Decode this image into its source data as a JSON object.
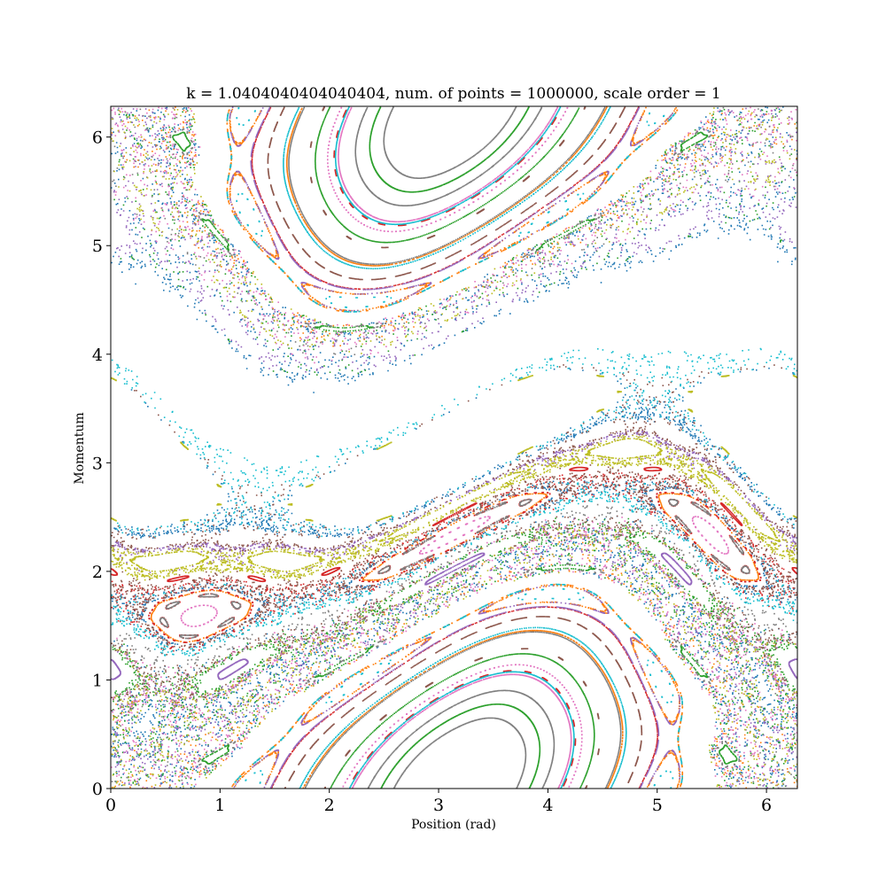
{
  "chart_data": {
    "type": "scatter",
    "title": "k = 1.0404040404040404, num. of  points = 1000000, scale order = 1",
    "xlabel": "Position (rad)",
    "ylabel": "Momentum",
    "xlim": [
      0,
      6.283
    ],
    "ylim": [
      0,
      6.283
    ],
    "x_ticks": [
      "0",
      "1",
      "2",
      "3",
      "4",
      "5",
      "6"
    ],
    "y_ticks": [
      "0",
      "1",
      "2",
      "3",
      "4",
      "5",
      "6"
    ],
    "grid": false,
    "legend": false,
    "k": 1.0404040404040404,
    "num_points": 1000000,
    "scale_order": 1,
    "palette": [
      "#1f77b4",
      "#ff7f0e",
      "#2ca02c",
      "#d62728",
      "#9467bd",
      "#8c564b",
      "#e377c2",
      "#7f7f7f",
      "#bcbd22",
      "#17becf"
    ]
  }
}
